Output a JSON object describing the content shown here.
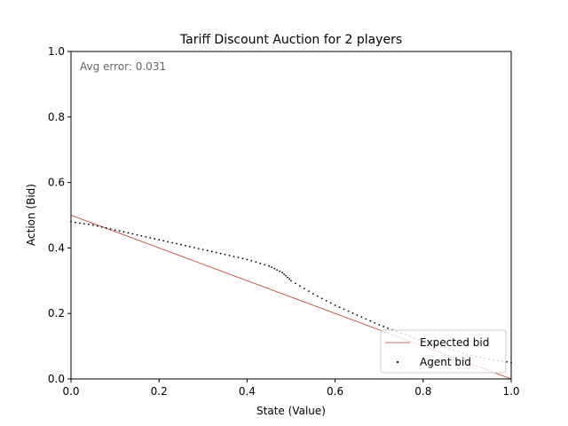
{
  "chart_data": {
    "type": "line",
    "title": "Tariff Discount Auction for 2 players",
    "xlabel": "State (Value)",
    "ylabel": "Action (Bid)",
    "xlim": [
      0,
      1
    ],
    "ylim": [
      0,
      1
    ],
    "xticks": [
      "0.0",
      "0.2",
      "0.4",
      "0.6",
      "0.8",
      "1.0"
    ],
    "yticks": [
      "0.0",
      "0.2",
      "0.4",
      "0.6",
      "0.8",
      "1.0"
    ],
    "grid": false,
    "legend_position": "lower-right",
    "annotation": "Avg error: 0.031",
    "series": [
      {
        "name": "Expected bid",
        "kind": "line",
        "color": "#c0392b",
        "x": [
          0.0,
          1.0
        ],
        "y": [
          0.5,
          0.0
        ]
      },
      {
        "name": "Agent bid",
        "kind": "scatter",
        "color": "#000000",
        "x": [
          0.0,
          0.05,
          0.1,
          0.15,
          0.2,
          0.25,
          0.3,
          0.35,
          0.4,
          0.45,
          0.48,
          0.5,
          0.55,
          0.6,
          0.65,
          0.7,
          0.75,
          0.8,
          0.85,
          0.9,
          0.95,
          1.0
        ],
        "y": [
          0.48,
          0.47,
          0.455,
          0.44,
          0.425,
          0.41,
          0.395,
          0.38,
          0.365,
          0.345,
          0.325,
          0.3,
          0.26,
          0.225,
          0.195,
          0.165,
          0.14,
          0.115,
          0.095,
          0.075,
          0.06,
          0.05
        ]
      }
    ]
  }
}
